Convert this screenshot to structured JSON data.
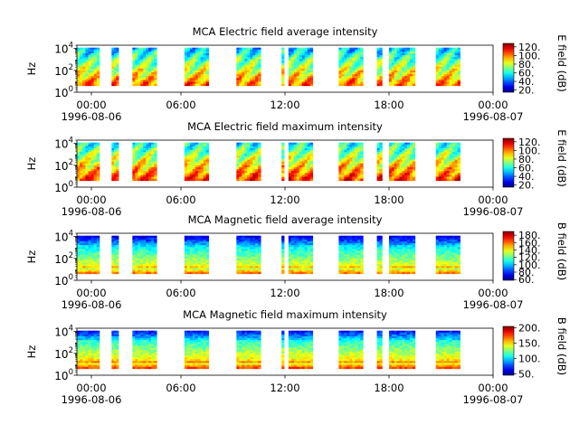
{
  "chart_data": [
    {
      "type": "heatmap",
      "title": "MCA  Electric field average intensity",
      "ylabel": "Hz",
      "yticks": [
        "10^0",
        "10^2",
        "10^4"
      ],
      "ylim": [
        1,
        20000
      ],
      "yscale": "log",
      "xticks": [
        "00:00",
        "06:00",
        "12:00",
        "18:00",
        "00:00"
      ],
      "xtick_dates": [
        "1996-08-06",
        "1996-08-07"
      ],
      "xlim_hours": [
        0,
        24
      ],
      "colorbar": {
        "label": "E field (dB)",
        "ticks": [
          20,
          40,
          60,
          80,
          100,
          120
        ],
        "range": [
          15,
          128
        ]
      },
      "data_segments_hours": [
        [
          0.0,
          1.3
        ],
        [
          2.0,
          2.4
        ],
        [
          3.2,
          4.6
        ],
        [
          6.2,
          7.6
        ],
        [
          9.2,
          10.6
        ],
        [
          11.8,
          11.95
        ],
        [
          12.2,
          13.6
        ],
        [
          15.1,
          16.5
        ],
        [
          17.3,
          17.6
        ],
        [
          18.0,
          19.5
        ],
        [
          20.7,
          22.1
        ]
      ],
      "colormap": "jet"
    },
    {
      "type": "heatmap",
      "title": "MCA  Electric field maximum intensity",
      "ylabel": "Hz",
      "yticks": [
        "10^0",
        "10^2",
        "10^4"
      ],
      "ylim": [
        1,
        20000
      ],
      "yscale": "log",
      "xticks": [
        "00:00",
        "06:00",
        "12:00",
        "18:00",
        "00:00"
      ],
      "xtick_dates": [
        "1996-08-06",
        "1996-08-07"
      ],
      "xlim_hours": [
        0,
        24
      ],
      "colorbar": {
        "label": "E field (dB)",
        "ticks": [
          20,
          40,
          60,
          80,
          100,
          120
        ],
        "range": [
          15,
          128
        ]
      },
      "data_segments_hours": [
        [
          0.0,
          1.3
        ],
        [
          2.0,
          2.4
        ],
        [
          3.2,
          4.6
        ],
        [
          6.2,
          7.6
        ],
        [
          9.2,
          10.6
        ],
        [
          11.8,
          11.95
        ],
        [
          12.2,
          13.6
        ],
        [
          15.1,
          16.5
        ],
        [
          17.3,
          17.6
        ],
        [
          18.0,
          19.5
        ],
        [
          20.7,
          22.1
        ]
      ],
      "colormap": "jet"
    },
    {
      "type": "heatmap",
      "title": "MCA  Magnetic field average intensity",
      "ylabel": "Hz",
      "yticks": [
        "10^0",
        "10^2",
        "10^4"
      ],
      "ylim": [
        1,
        20000
      ],
      "yscale": "log",
      "xticks": [
        "00:00",
        "06:00",
        "12:00",
        "18:00",
        "00:00"
      ],
      "xtick_dates": [
        "1996-08-06",
        "1996-08-07"
      ],
      "xlim_hours": [
        0,
        24
      ],
      "colorbar": {
        "label": "B field (dB)",
        "ticks": [
          60,
          80,
          100,
          120,
          140,
          160,
          180
        ],
        "range": [
          58,
          190
        ]
      },
      "data_segments_hours": [
        [
          0.0,
          1.3
        ],
        [
          2.0,
          2.4
        ],
        [
          3.2,
          4.6
        ],
        [
          6.2,
          7.6
        ],
        [
          9.2,
          10.6
        ],
        [
          11.8,
          11.95
        ],
        [
          12.2,
          13.6
        ],
        [
          15.1,
          16.5
        ],
        [
          17.3,
          17.6
        ],
        [
          18.0,
          19.5
        ],
        [
          20.7,
          22.1
        ]
      ],
      "colormap": "jet"
    },
    {
      "type": "heatmap",
      "title": "MCA  Magnetic field maximum intensity",
      "ylabel": "Hz",
      "yticks": [
        "10^0",
        "10^2",
        "10^4"
      ],
      "ylim": [
        1,
        20000
      ],
      "yscale": "log",
      "xticks": [
        "00:00",
        "06:00",
        "12:00",
        "18:00",
        "00:00"
      ],
      "xtick_dates": [
        "1996-08-06",
        "1996-08-07"
      ],
      "xlim_hours": [
        0,
        24
      ],
      "colorbar": {
        "label": "B field (dB)",
        "ticks": [
          50,
          100,
          150,
          200
        ],
        "range": [
          45,
          205
        ]
      },
      "data_segments_hours": [
        [
          0.0,
          1.3
        ],
        [
          2.0,
          2.4
        ],
        [
          3.2,
          4.6
        ],
        [
          6.2,
          7.6
        ],
        [
          9.2,
          10.6
        ],
        [
          11.8,
          11.95
        ],
        [
          12.2,
          13.6
        ],
        [
          15.1,
          16.5
        ],
        [
          17.3,
          17.6
        ],
        [
          18.0,
          19.5
        ],
        [
          20.7,
          22.1
        ]
      ],
      "colormap": "jet"
    }
  ]
}
